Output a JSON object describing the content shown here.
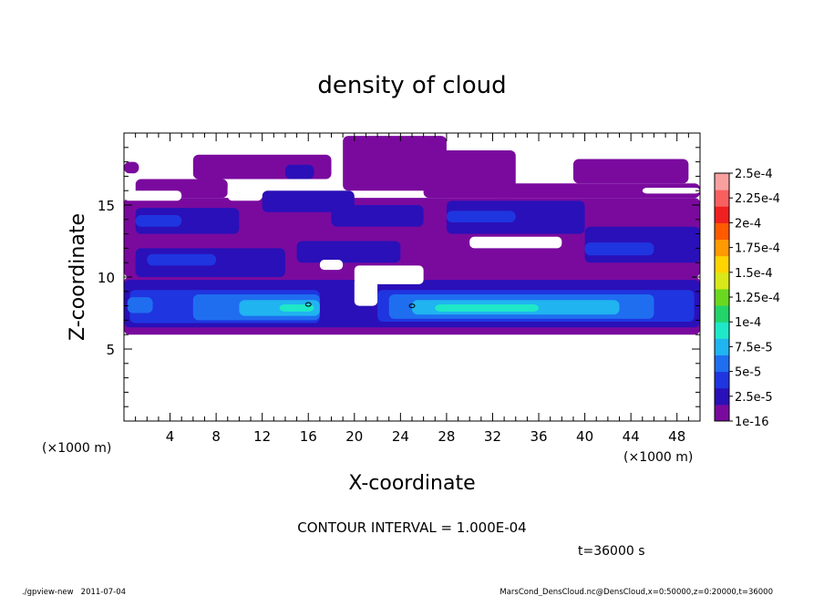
{
  "chart_data": {
    "type": "heatmap",
    "title": "density of cloud",
    "xlabel": "X-coordinate",
    "ylabel": "Z-coordinate",
    "x_unit": "(×1000 m)",
    "y_unit": "(×1000 m)",
    "xlim": [
      0,
      50
    ],
    "ylim": [
      0,
      20
    ],
    "x_ticks": [
      "4",
      "8",
      "12",
      "16",
      "20",
      "24",
      "28",
      "32",
      "36",
      "40",
      "44",
      "48"
    ],
    "y_ticks": [
      "5",
      "10",
      "15"
    ],
    "colorbar": {
      "labels": [
        "1e-16",
        "2.5e-5",
        "5e-5",
        "7.5e-5",
        "1e-4",
        "1.25e-4",
        "1.5e-4",
        "1.75e-4",
        "2e-4",
        "2.25e-4",
        "2.5e-4"
      ],
      "colors": [
        "#7a0a9e",
        "#2a10b8",
        "#1f35e0",
        "#1f6ef0",
        "#20b4f0",
        "#1ee8c8",
        "#22d46a",
        "#6ad820",
        "#d8e818",
        "#ffd400",
        "#ff9a00",
        "#ff5a00",
        "#f02020",
        "#f86060",
        "#f8a0a0"
      ]
    },
    "contour_interval": "CONTOUR INTERVAL = 1.000E-04",
    "time_label": "t=36000 s",
    "footer_left": "./gpview-new   2011-07-04",
    "footer_right": "MarsCond_DensCloud.nc@DensCloud,x=0:50000,z=0:20000,t=36000",
    "layers": [
      {
        "color": "#7a0a9e",
        "rects": [
          [
            0,
            6,
            50,
            10
          ],
          [
            0,
            10,
            50,
            15.5
          ],
          [
            1,
            15.5,
            9,
            16.8
          ],
          [
            6,
            16.8,
            18,
            18.5
          ],
          [
            19,
            16,
            28,
            19.8
          ],
          [
            26,
            15.5,
            34,
            18.8
          ],
          [
            32,
            15.5,
            50,
            16.5
          ],
          [
            39,
            16.5,
            49,
            18.2
          ],
          [
            0,
            17.2,
            1.3,
            18
          ]
        ]
      },
      {
        "color": "#2a10b8",
        "rects": [
          [
            0,
            6.5,
            50,
            9.8
          ],
          [
            1,
            10,
            14,
            12
          ],
          [
            15,
            11,
            24,
            12.5
          ],
          [
            1,
            13,
            10,
            14.8
          ],
          [
            12,
            14.5,
            20,
            16
          ],
          [
            18,
            13.5,
            26,
            15
          ],
          [
            28,
            13,
            40,
            15.3
          ],
          [
            40,
            11,
            50,
            13.5
          ],
          [
            14,
            16.8,
            16.5,
            17.8
          ]
        ]
      },
      {
        "color": "#1f35e0",
        "rects": [
          [
            0.5,
            6.8,
            17,
            9.1
          ],
          [
            22,
            6.9,
            49.5,
            9.1
          ],
          [
            2,
            10.8,
            8,
            11.6
          ],
          [
            40,
            11.5,
            46,
            12.4
          ],
          [
            1,
            13.5,
            5,
            14.3
          ],
          [
            28,
            13.8,
            34,
            14.6
          ]
        ]
      },
      {
        "color": "#1f6ef0",
        "rects": [
          [
            6,
            7,
            17,
            8.8
          ],
          [
            23,
            7.1,
            46,
            8.8
          ],
          [
            0.3,
            7.5,
            2.5,
            8.6
          ]
        ]
      },
      {
        "color": "#20b4f0",
        "rects": [
          [
            10,
            7.3,
            17,
            8.4
          ],
          [
            25,
            7.4,
            43,
            8.4
          ]
        ]
      },
      {
        "color": "#1ee8c8",
        "rects": [
          [
            13.5,
            7.6,
            16.5,
            8.1
          ],
          [
            27,
            7.6,
            36,
            8.1
          ]
        ]
      }
    ],
    "clear_regions": [
      [
        0,
        15.3,
        5,
        16
      ],
      [
        17,
        10.5,
        19,
        11.2
      ],
      [
        20,
        9.5,
        26,
        10.8
      ],
      [
        30,
        12,
        38,
        12.8
      ],
      [
        45,
        15.8,
        50,
        16.2
      ],
      [
        20,
        8,
        22,
        10
      ],
      [
        9,
        15.3,
        12,
        16.5
      ],
      [
        0,
        15.5,
        1,
        17.2
      ]
    ],
    "contour_marks": [
      [
        16,
        8.1
      ],
      [
        25,
        8.0
      ]
    ]
  }
}
